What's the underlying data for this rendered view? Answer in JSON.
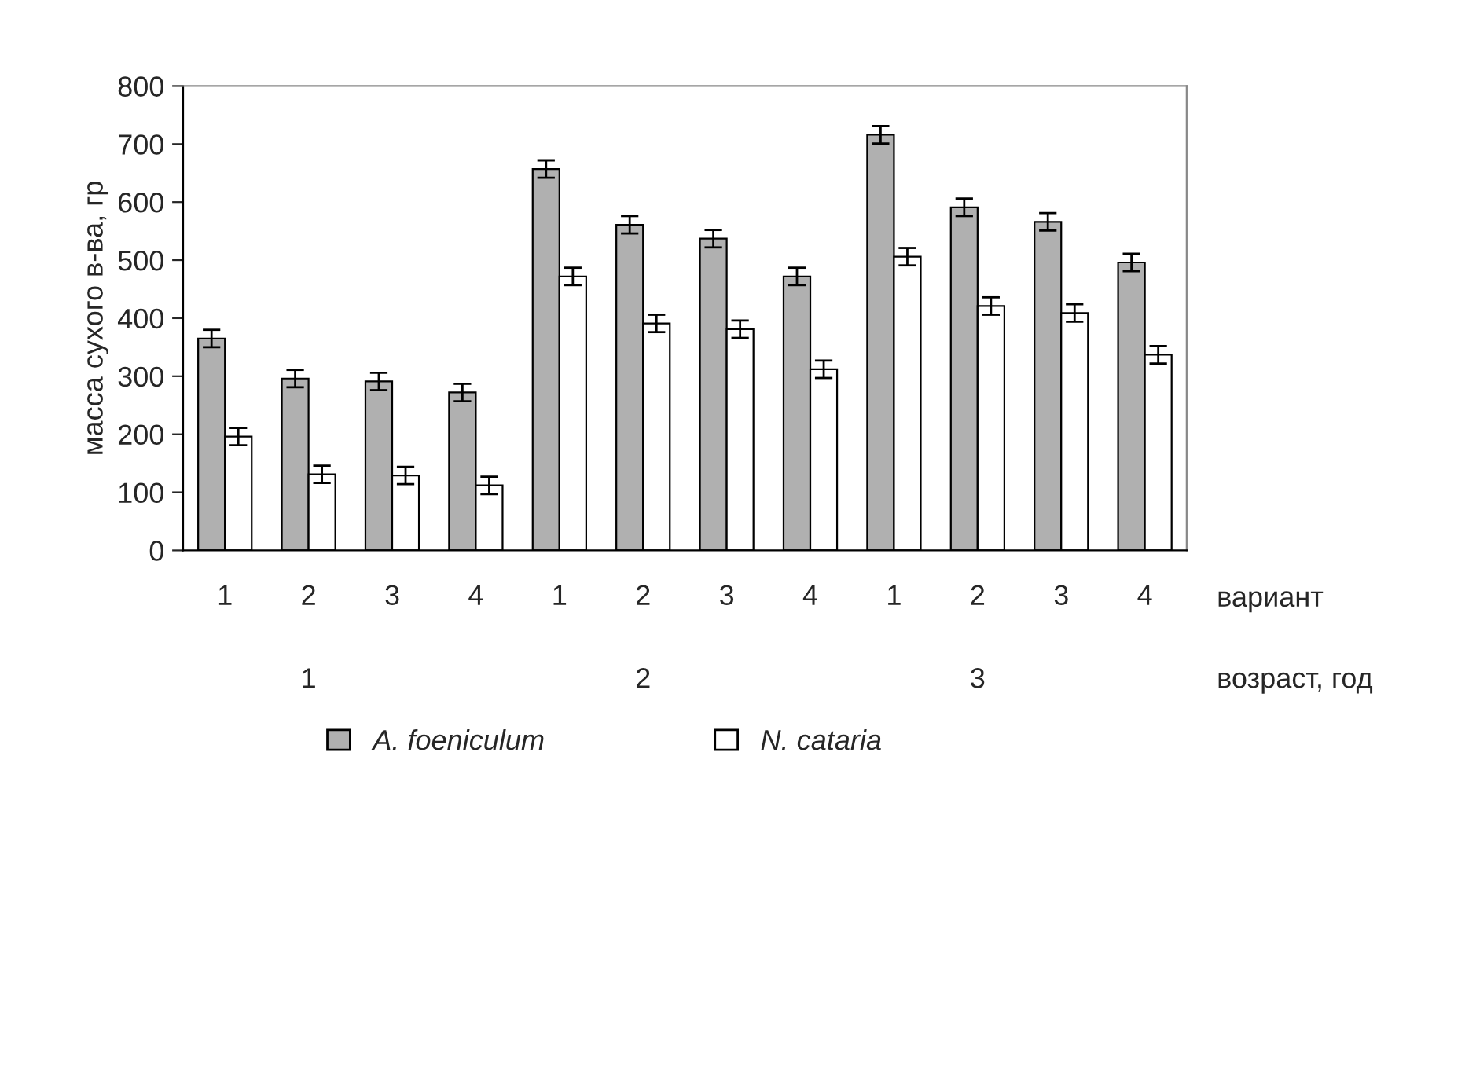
{
  "chart_data": {
    "type": "bar",
    "ylabel": "масса сухого в-ва, гр",
    "categories": [
      "1",
      "2",
      "3",
      "4",
      "1",
      "2",
      "3",
      "4",
      "1",
      "2",
      "3",
      "4"
    ],
    "series": [
      {
        "name": "A. foeniculum",
        "color": "#b0b0b0",
        "values": [
          365,
          296,
          291,
          272,
          657,
          561,
          537,
          472,
          716,
          591,
          566,
          496
        ],
        "errors": [
          15,
          15,
          15,
          15,
          15,
          15,
          15,
          15,
          15,
          15,
          15,
          15
        ]
      },
      {
        "name": "N. cataria",
        "color": "#ffffff",
        "values": [
          196,
          131,
          129,
          112,
          472,
          391,
          381,
          312,
          506,
          421,
          409,
          337
        ],
        "errors": [
          15,
          15,
          15,
          15,
          15,
          15,
          15,
          15,
          15,
          15,
          15,
          15
        ]
      }
    ],
    "ylim": [
      0,
      800
    ],
    "yticks": [
      0,
      100,
      200,
      300,
      400,
      500,
      600,
      700,
      800
    ],
    "grid": false,
    "legend": "bottom",
    "annotations": [
      "вариант",
      "1",
      "2",
      "3",
      "возраст, год"
    ]
  }
}
